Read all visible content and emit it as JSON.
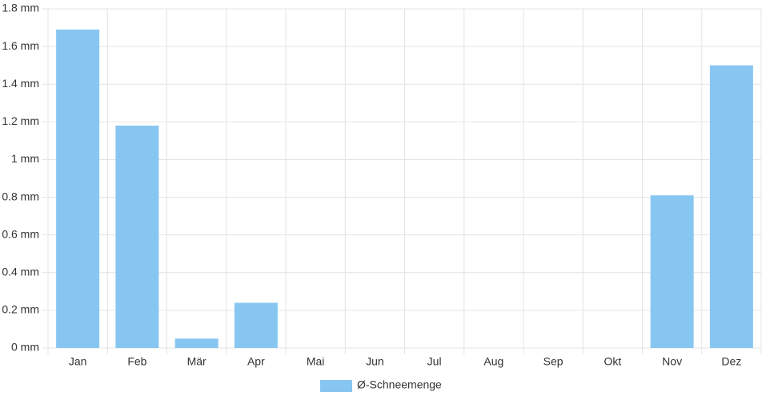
{
  "chart_data": {
    "type": "bar",
    "categories": [
      "Jan",
      "Feb",
      "Mär",
      "Apr",
      "Mai",
      "Jun",
      "Jul",
      "Aug",
      "Sep",
      "Okt",
      "Nov",
      "Dez"
    ],
    "series": [
      {
        "name": "Ø-Schneemenge",
        "color": "#88c6f2",
        "values": [
          1.69,
          1.18,
          0.05,
          0.24,
          0,
          0,
          0,
          0,
          0,
          0,
          0.81,
          1.5
        ]
      }
    ],
    "ylim": [
      0,
      1.8
    ],
    "yticks": [
      {
        "value": 0,
        "label": "0 mm"
      },
      {
        "value": 0.2,
        "label": "0.2 mm"
      },
      {
        "value": 0.4,
        "label": "0.4 mm"
      },
      {
        "value": 0.6,
        "label": "0.6 mm"
      },
      {
        "value": 0.8,
        "label": "0.8 mm"
      },
      {
        "value": 1,
        "label": "1 mm"
      },
      {
        "value": 1.2,
        "label": "1.2 mm"
      },
      {
        "value": 1.4,
        "label": "1.4 mm"
      },
      {
        "value": 1.6,
        "label": "1.6 mm"
      },
      {
        "value": 1.8,
        "label": "1.8 mm"
      }
    ],
    "grid": true,
    "legend": "bottom"
  }
}
